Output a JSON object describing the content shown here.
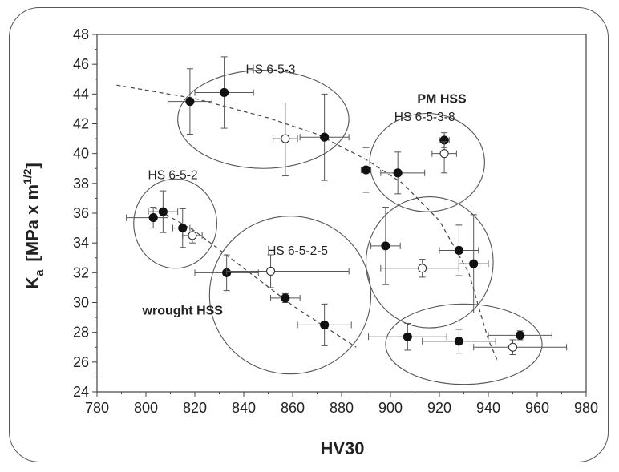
{
  "chart_data": {
    "type": "scatter",
    "title": "",
    "xlabel": "HV30",
    "ylabel": "K",
    "ylabel_sub": "a",
    "ylabel_unit": "[MPa x m",
    "ylabel_sup": "1/2",
    "ylabel_close": "]",
    "xlim": [
      780,
      980
    ],
    "ylim": [
      24,
      48
    ],
    "xticks": [
      780,
      800,
      820,
      840,
      860,
      880,
      900,
      920,
      940,
      960,
      980
    ],
    "yticks": [
      24,
      26,
      28,
      30,
      32,
      34,
      36,
      38,
      40,
      42,
      44,
      46,
      48
    ],
    "points": [
      {
        "x": 818,
        "y": 43.5,
        "xerr": [
          9,
          9
        ],
        "yerr": [
          2.2,
          2.2
        ],
        "filled": true
      },
      {
        "x": 832,
        "y": 44.1,
        "xerr": [
          12,
          12
        ],
        "yerr": [
          2.4,
          2.4
        ],
        "filled": true
      },
      {
        "x": 857,
        "y": 41.0,
        "xerr": [
          5,
          5
        ],
        "yerr": [
          2.5,
          2.4
        ],
        "filled": false
      },
      {
        "x": 873,
        "y": 41.1,
        "xerr": [
          10,
          10
        ],
        "yerr": [
          2.9,
          2.9
        ],
        "filled": true
      },
      {
        "x": 890,
        "y": 38.9,
        "xerr": [
          2,
          2
        ],
        "yerr": [
          1.5,
          1.5
        ],
        "filled": true
      },
      {
        "x": 903,
        "y": 38.7,
        "xerr": [
          7,
          11
        ],
        "yerr": [
          1.4,
          1.4
        ],
        "filled": true
      },
      {
        "x": 922,
        "y": 40.9,
        "xerr": [
          2,
          2
        ],
        "yerr": [
          0.5,
          0.5
        ],
        "filled": true
      },
      {
        "x": 922,
        "y": 40.0,
        "xerr": [
          5,
          5
        ],
        "yerr": [
          1.3,
          0.8
        ],
        "filled": false
      },
      {
        "x": 803,
        "y": 35.7,
        "xerr": [
          11,
          6
        ],
        "yerr": [
          0.7,
          0.7
        ],
        "filled": true
      },
      {
        "x": 807,
        "y": 36.1,
        "xerr": [
          6,
          6
        ],
        "yerr": [
          1.4,
          1.4
        ],
        "filled": true
      },
      {
        "x": 815,
        "y": 35.0,
        "xerr": [
          4,
          3
        ],
        "yerr": [
          1.3,
          1.3
        ],
        "filled": true
      },
      {
        "x": 819,
        "y": 34.5,
        "xerr": [
          4,
          4
        ],
        "yerr": [
          0.5,
          0.5
        ],
        "filled": false
      },
      {
        "x": 833,
        "y": 32.0,
        "xerr": [
          13,
          13
        ],
        "yerr": [
          1.2,
          1.2
        ],
        "filled": true
      },
      {
        "x": 851,
        "y": 32.1,
        "xerr": [
          18,
          32
        ],
        "yerr": [
          1.1,
          1.1
        ],
        "filled": false
      },
      {
        "x": 857,
        "y": 30.3,
        "xerr": [
          6,
          6
        ],
        "yerr": [
          0.3,
          0.3
        ],
        "filled": true
      },
      {
        "x": 873,
        "y": 28.5,
        "xerr": [
          11,
          11
        ],
        "yerr": [
          1.4,
          1.4
        ],
        "filled": true
      },
      {
        "x": 898,
        "y": 33.8,
        "xerr": [
          6,
          6
        ],
        "yerr": [
          2.6,
          2.6
        ],
        "filled": true
      },
      {
        "x": 913,
        "y": 32.3,
        "xerr": [
          17,
          15
        ],
        "yerr": [
          0.6,
          0.6
        ],
        "filled": false
      },
      {
        "x": 928,
        "y": 33.5,
        "xerr": [
          8,
          8
        ],
        "yerr": [
          1.7,
          1.7
        ],
        "filled": true
      },
      {
        "x": 934,
        "y": 32.6,
        "xerr": [
          6,
          6
        ],
        "yerr": [
          3.3,
          3.3
        ],
        "filled": true
      },
      {
        "x": 907,
        "y": 27.7,
        "xerr": [
          16,
          16
        ],
        "yerr": [
          0.9,
          0.9
        ],
        "filled": true
      },
      {
        "x": 928,
        "y": 27.4,
        "xerr": [
          15,
          15
        ],
        "yerr": [
          0.8,
          0.8
        ],
        "filled": true
      },
      {
        "x": 950,
        "y": 27.0,
        "xerr": [
          16,
          22
        ],
        "yerr": [
          0.5,
          0.5
        ],
        "filled": false
      },
      {
        "x": 953,
        "y": 27.8,
        "xerr": [
          13,
          13
        ],
        "yerr": [
          0.3,
          0.3
        ],
        "filled": true
      }
    ],
    "ellipses": [
      {
        "cx": 848,
        "cy": 42.3,
        "rx": 35,
        "ry": 3.3
      },
      {
        "cx": 915,
        "cy": 39.4,
        "rx": 23.5,
        "ry": 3.3
      },
      {
        "cx": 812,
        "cy": 35.3,
        "rx": 17,
        "ry": 3.0
      },
      {
        "cx": 859,
        "cy": 30.5,
        "rx": 33,
        "ry": 5.3
      },
      {
        "cx": 916,
        "cy": 32.7,
        "rx": 26,
        "ry": 4.4
      },
      {
        "cx": 930,
        "cy": 27.2,
        "rx": 32,
        "ry": 2.7
      }
    ],
    "trend_lines": [
      [
        [
          788,
          44.6
        ],
        [
          820,
          43.7
        ],
        [
          850,
          42.4
        ],
        [
          870,
          41.3
        ],
        [
          890,
          39.6
        ],
        [
          905,
          38.0
        ],
        [
          920,
          35.5
        ],
        [
          932,
          32.0
        ],
        [
          940,
          27.5
        ],
        [
          944,
          26.0
        ]
      ],
      [
        [
          803,
          36.4
        ],
        [
          820,
          34.8
        ],
        [
          840,
          32.3
        ],
        [
          860,
          29.8
        ],
        [
          886,
          27.0
        ]
      ]
    ],
    "annotations": [
      {
        "text": "HS 6-5-3",
        "x": 851,
        "y": 45.4,
        "bold": false
      },
      {
        "text": "PM HSS",
        "x": 921,
        "y": 43.4,
        "bold": true
      },
      {
        "text": "HS 6-5-3-8",
        "x": 914,
        "y": 42.2,
        "bold": false
      },
      {
        "text": "HS 6-5-2",
        "x": 811,
        "y": 38.3,
        "bold": false
      },
      {
        "text": "HS 6-5-2-5",
        "x": 862,
        "y": 33.2,
        "bold": false
      },
      {
        "text": "wrought HSS",
        "x": 815,
        "y": 29.2,
        "bold": true
      }
    ]
  }
}
